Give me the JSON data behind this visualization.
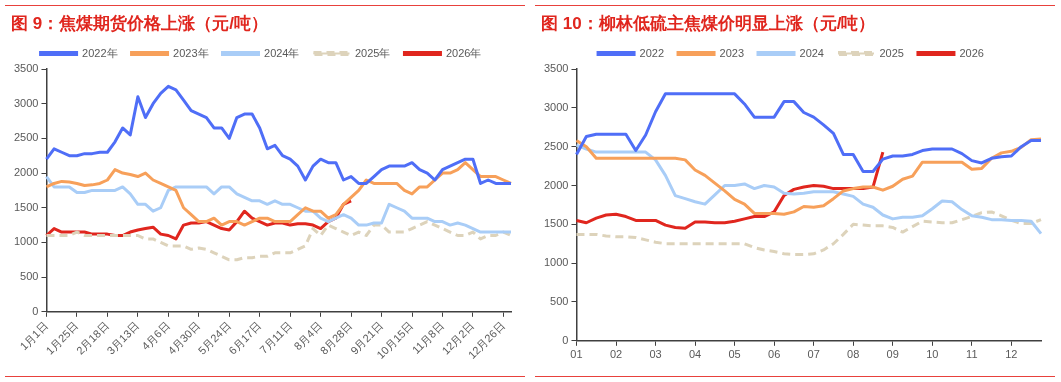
{
  "chart_data": [
    {
      "type": "line",
      "title": "图 9：焦煤期货价格上涨（元/吨）",
      "categories": [
        "1月1日",
        null,
        null,
        null,
        "1月25日",
        null,
        null,
        null,
        "2月18日",
        null,
        null,
        null,
        "3月13日",
        null,
        null,
        null,
        "4月6日",
        null,
        null,
        null,
        "4月30日",
        null,
        null,
        null,
        "5月24日",
        null,
        null,
        null,
        "6月17日",
        null,
        null,
        null,
        "7月11日",
        null,
        null,
        null,
        "8月4日",
        null,
        null,
        null,
        "8月28日",
        null,
        null,
        null,
        "9月21日",
        null,
        null,
        null,
        "10月15日",
        null,
        null,
        null,
        "11月8日",
        null,
        null,
        null,
        "12月2日",
        null,
        null,
        null,
        "12月26日",
        null
      ],
      "series": [
        {
          "name": "2022年",
          "color": "#4f6ef7",
          "values": [
            2200,
            2350,
            2300,
            2250,
            2250,
            2280,
            2280,
            2300,
            2300,
            2450,
            2650,
            2550,
            3100,
            2800,
            3000,
            3150,
            3250,
            3200,
            3050,
            2900,
            2850,
            2800,
            2650,
            2650,
            2500,
            2800,
            2850,
            2850,
            2650,
            2350,
            2400,
            2250,
            2200,
            2100,
            1900,
            2100,
            2200,
            2150,
            2150,
            1900,
            1950,
            1850,
            1850,
            1950,
            2050,
            2100,
            2100,
            2100,
            2150,
            2050,
            2000,
            1900,
            2050,
            2100,
            2150,
            2200,
            2200,
            1850,
            1900,
            1850,
            1850,
            1850
          ]
        },
        {
          "name": "2023年",
          "color": "#f7a05a",
          "values": [
            1800,
            1850,
            1880,
            1870,
            1850,
            1820,
            1830,
            1850,
            1900,
            2050,
            2000,
            1980,
            1950,
            2000,
            1900,
            1850,
            1800,
            1750,
            1500,
            1400,
            1300,
            1300,
            1350,
            1250,
            1300,
            1300,
            1250,
            1300,
            1350,
            1350,
            1300,
            1300,
            1300,
            1400,
            1500,
            1450,
            1450,
            1350,
            1400,
            1550,
            1650,
            1750,
            1900,
            1850,
            1850,
            1850,
            1850,
            1750,
            1700,
            1800,
            1800,
            1900,
            2000,
            2000,
            2050,
            2150,
            2050,
            1950,
            1950,
            1950,
            1900,
            1850
          ]
        },
        {
          "name": "2024年",
          "color": "#a9cdf7",
          "values": [
            1950,
            1800,
            1800,
            1800,
            1720,
            1720,
            1750,
            1750,
            1750,
            1750,
            1800,
            1700,
            1550,
            1550,
            1450,
            1500,
            1750,
            1800,
            1800,
            1800,
            1800,
            1800,
            1700,
            1800,
            1800,
            1700,
            1650,
            1600,
            1600,
            1550,
            1600,
            1550,
            1550,
            1500,
            1450,
            1450,
            1350,
            1300,
            1350,
            1400,
            1350,
            1250,
            1250,
            1280,
            1280,
            1550,
            1500,
            1450,
            1350,
            1350,
            1350,
            1300,
            1300,
            1250,
            1280,
            1250,
            1200,
            1150,
            1150,
            1150,
            1150,
            1150
          ]
        },
        {
          "name": "2025年",
          "color": "#ddd3bb",
          "line_style": "dashed",
          "values": [
            1100,
            1100,
            1100,
            1100,
            1150,
            1100,
            1100,
            1100,
            1100,
            1100,
            1100,
            1100,
            1100,
            1050,
            1050,
            1000,
            950,
            950,
            950,
            900,
            920,
            900,
            850,
            800,
            750,
            750,
            780,
            780,
            800,
            800,
            850,
            850,
            850,
            900,
            950,
            1200,
            1100,
            1250,
            1200,
            1150,
            1100,
            1150,
            1100,
            1250,
            1250,
            1150,
            1150,
            1150,
            1200,
            1250,
            1300,
            1250,
            1200,
            1150,
            1100,
            1100,
            1150,
            1050,
            1100,
            1100,
            1150,
            1100
          ]
        },
        {
          "name": "2026年",
          "color": "#e0261e",
          "values": [
            1100,
            1200,
            1150,
            1150,
            1150,
            1150,
            1120,
            1120,
            1120,
            1100,
            1100,
            1150,
            1180,
            1200,
            1220,
            1120,
            1100,
            1050,
            1250,
            1280,
            1280,
            1300,
            1250,
            1200,
            1180,
            1300,
            1450,
            1350,
            1300,
            1250,
            1280,
            1280,
            1250,
            1270,
            1270,
            1250,
            1200,
            1300,
            1350,
            1550,
            1600,
            null,
            null,
            null,
            null,
            null,
            null,
            null,
            null,
            null,
            null,
            null,
            null,
            null,
            null,
            null,
            null,
            null,
            null,
            null,
            null,
            null
          ]
        }
      ],
      "ylim": [
        0,
        3500
      ],
      "yticks": [
        0,
        500,
        1000,
        1500,
        2000,
        2500,
        3000,
        3500
      ],
      "legend": "top",
      "grid": false,
      "marker": "none"
    },
    {
      "type": "line",
      "title": "图 10：柳林低硫主焦煤价明显上涨（元/吨）",
      "categories": [
        "01",
        null,
        null,
        null,
        "02",
        null,
        null,
        null,
        "03",
        null,
        null,
        null,
        "04",
        null,
        null,
        null,
        "05",
        null,
        null,
        null,
        "06",
        null,
        null,
        null,
        "07",
        null,
        null,
        null,
        "08",
        null,
        null,
        null,
        "09",
        null,
        null,
        null,
        "10",
        null,
        null,
        null,
        "11",
        null,
        null,
        null,
        "12",
        null,
        null,
        null
      ],
      "series": [
        {
          "name": "2022",
          "color": "#4f6ef7",
          "values": [
            2400,
            2630,
            2660,
            2660,
            2660,
            2660,
            2450,
            2650,
            2950,
            3180,
            3180,
            3180,
            3180,
            3180,
            3180,
            3180,
            3180,
            3050,
            2880,
            2880,
            2880,
            3080,
            3080,
            2940,
            2880,
            2780,
            2670,
            2400,
            2400,
            2180,
            2180,
            2340,
            2380,
            2380,
            2400,
            2450,
            2470,
            2470,
            2470,
            2410,
            2320,
            2290,
            2350,
            2370,
            2380,
            2500,
            2580,
            2580
          ]
        },
        {
          "name": "2023",
          "color": "#f7a05a",
          "values": [
            2580,
            2500,
            2350,
            2350,
            2350,
            2350,
            2350,
            2350,
            2350,
            2350,
            2350,
            2330,
            2200,
            2130,
            2030,
            1930,
            1820,
            1760,
            1640,
            1640,
            1640,
            1630,
            1660,
            1730,
            1720,
            1740,
            1830,
            1930,
            1960,
            1980,
            1980,
            1940,
            1990,
            2080,
            2120,
            2300,
            2300,
            2300,
            2300,
            2300,
            2210,
            2220,
            2350,
            2420,
            2440,
            2490,
            2590,
            2600
          ]
        },
        {
          "name": "2024",
          "color": "#a9cdf7",
          "values": [
            2520,
            2470,
            2430,
            2430,
            2430,
            2430,
            2430,
            2430,
            2330,
            2130,
            1870,
            1830,
            1790,
            1760,
            1880,
            2000,
            2000,
            2020,
            1960,
            2000,
            1980,
            1900,
            1890,
            1900,
            1920,
            1920,
            1920,
            1890,
            1860,
            1760,
            1720,
            1620,
            1570,
            1590,
            1590,
            1610,
            1700,
            1800,
            1790,
            1690,
            1610,
            1590,
            1560,
            1560,
            1550,
            1550,
            1540,
            1380
          ]
        },
        {
          "name": "2025",
          "color": "#ddd3bb",
          "line_style": "dashed",
          "values": [
            1370,
            1370,
            1370,
            1350,
            1340,
            1340,
            1330,
            1300,
            1270,
            1250,
            1250,
            1250,
            1250,
            1250,
            1250,
            1250,
            1250,
            1250,
            1200,
            1170,
            1150,
            1120,
            1110,
            1110,
            1120,
            1170,
            1250,
            1370,
            1500,
            1490,
            1480,
            1480,
            1460,
            1400,
            1470,
            1540,
            1530,
            1520,
            1520,
            1560,
            1600,
            1650,
            1660,
            1610,
            1550,
            1510,
            1510,
            1560
          ]
        },
        {
          "name": "2026",
          "color": "#e0261e",
          "values": [
            1550,
            1520,
            1580,
            1620,
            1630,
            1600,
            1550,
            1550,
            1550,
            1490,
            1460,
            1450,
            1530,
            1530,
            1520,
            1520,
            1540,
            1570,
            1600,
            1600,
            1660,
            1870,
            1950,
            1980,
            2000,
            1990,
            1960,
            1960,
            1960,
            1960,
            1980,
            2430,
            null,
            null,
            null,
            null,
            null,
            null,
            null,
            null,
            null,
            null,
            null,
            null,
            null,
            null,
            null,
            null
          ]
        }
      ],
      "ylim": [
        0,
        3500
      ],
      "yticks": [
        0,
        500,
        1000,
        1500,
        2000,
        2500,
        3000,
        3500
      ],
      "legend": "top",
      "grid": false,
      "marker": "none"
    }
  ]
}
